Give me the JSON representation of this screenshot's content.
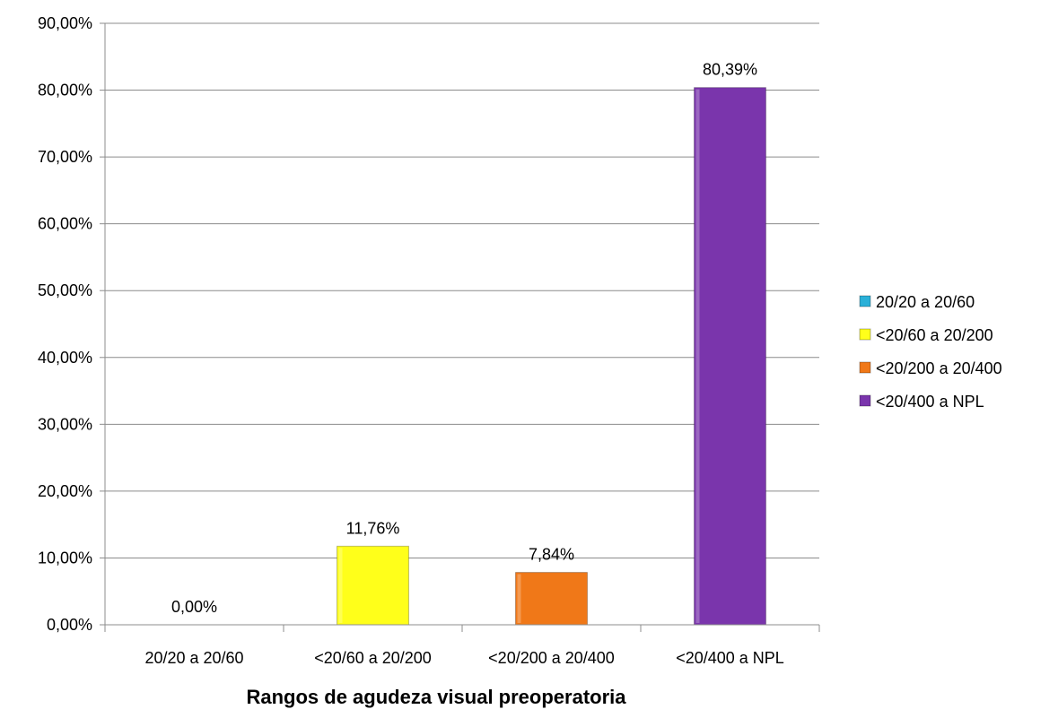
{
  "chart_data": {
    "type": "bar",
    "title": "",
    "xlabel": "Rangos de agudeza visual preoperatoria",
    "ylabel": "",
    "ylim": [
      0,
      90
    ],
    "yticks": [
      0,
      10,
      20,
      30,
      40,
      50,
      60,
      70,
      80,
      90
    ],
    "ytick_labels": [
      "0,00%",
      "10,00%",
      "20,00%",
      "30,00%",
      "40,00%",
      "50,00%",
      "60,00%",
      "70,00%",
      "80,00%",
      "90,00%"
    ],
    "categories": [
      "20/20 a 20/60",
      "<20/60 a 20/200",
      "<20/200 a 20/400",
      "<20/400 a NPL"
    ],
    "values": [
      0,
      11.76,
      7.84,
      80.39
    ],
    "data_labels": [
      "0,00%",
      "11,76%",
      "7,84%",
      "80,39%"
    ],
    "colors": [
      "#2ab0d8",
      "#ffff1a",
      "#f07818",
      "#7a35ac"
    ],
    "grid": true,
    "legend": {
      "placement": "right",
      "entries": [
        "20/20 a 20/60",
        "<20/60 a 20/200",
        "<20/200 a 20/400",
        "<20/400 a NPL"
      ]
    }
  }
}
